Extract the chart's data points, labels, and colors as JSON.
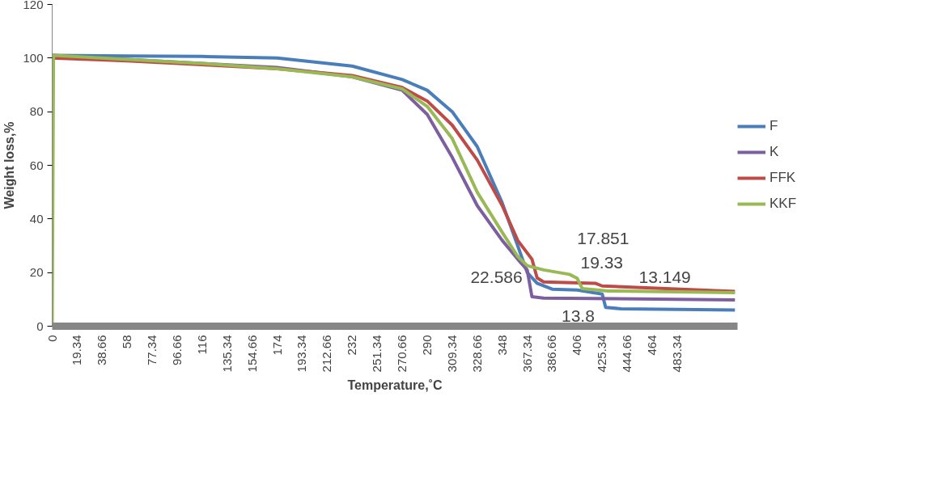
{
  "chart_data": {
    "type": "line",
    "xlabel": "Temperature,˚C",
    "ylabel": "Weight loss,%",
    "xlim": [
      0,
      530
    ],
    "ylim": [
      0,
      120
    ],
    "xticks": [
      0,
      19.34,
      38.66,
      58,
      77.34,
      96.66,
      116,
      135.34,
      154.66,
      174,
      193.34,
      212.66,
      232,
      251.34,
      270.66,
      290,
      309.34,
      328.66,
      348,
      367.34,
      386.66,
      406,
      425.34,
      444.66,
      464,
      483.34
    ],
    "yticks": [
      0,
      20,
      40,
      60,
      80,
      100,
      120
    ],
    "grid": false,
    "legend": "right",
    "marker": "none",
    "line_style": "solid",
    "series": [
      {
        "name": "F",
        "color": "#4a7ebb",
        "x": [
          0,
          58,
          116,
          174,
          232,
          270.66,
          290,
          309.34,
          328.66,
          348,
          360,
          367.34,
          375,
          386.66,
          406,
          425.34,
          428,
          440,
          528
        ],
        "values": [
          101,
          100.8,
          100.6,
          100,
          97,
          92,
          88,
          80,
          67,
          46,
          30,
          20,
          16,
          13.8,
          13.5,
          12,
          7,
          6.5,
          6
        ]
      },
      {
        "name": "K",
        "color": "#7d5fa0",
        "x": [
          0,
          58,
          116,
          174,
          232,
          270.66,
          290,
          309.34,
          328.66,
          348,
          360,
          367.34,
          371,
          380,
          528
        ],
        "values": [
          101,
          99.5,
          98,
          96.5,
          93,
          88,
          79,
          63,
          45,
          32,
          25,
          21,
          11,
          10.5,
          9.8
        ]
      },
      {
        "name": "FFK",
        "color": "#be4b48",
        "x": [
          0,
          58,
          116,
          174,
          232,
          270.66,
          290,
          309.34,
          328.66,
          348,
          360,
          371,
          375,
          380,
          420,
          425.34,
          528
        ],
        "values": [
          100,
          99,
          97.5,
          96,
          93.5,
          89,
          84,
          75,
          62,
          45,
          32,
          25,
          18,
          16.5,
          16,
          15,
          13
        ]
      },
      {
        "name": "KKF",
        "color": "#98b954",
        "x": [
          0,
          1,
          58,
          116,
          174,
          232,
          270.66,
          290,
          309.34,
          328.66,
          348,
          360,
          367.34,
          380,
          400,
          406,
          410,
          430,
          528
        ],
        "values": [
          0,
          101,
          99.5,
          98,
          96,
          93,
          88.5,
          82,
          70,
          50,
          35,
          26,
          22.586,
          21,
          19.33,
          17.851,
          14,
          13.149,
          12.5
        ]
      }
    ],
    "annotations": [
      {
        "text": "22.586",
        "x": 367.34,
        "y": 22.586
      },
      {
        "text": "17.851",
        "x": 406,
        "y": 17.851
      },
      {
        "text": "19.33",
        "x": 400,
        "y": 19.33
      },
      {
        "text": "13.149",
        "x": 430,
        "y": 13.149
      },
      {
        "text": "13.8",
        "x": 386.66,
        "y": 13.8
      }
    ]
  }
}
